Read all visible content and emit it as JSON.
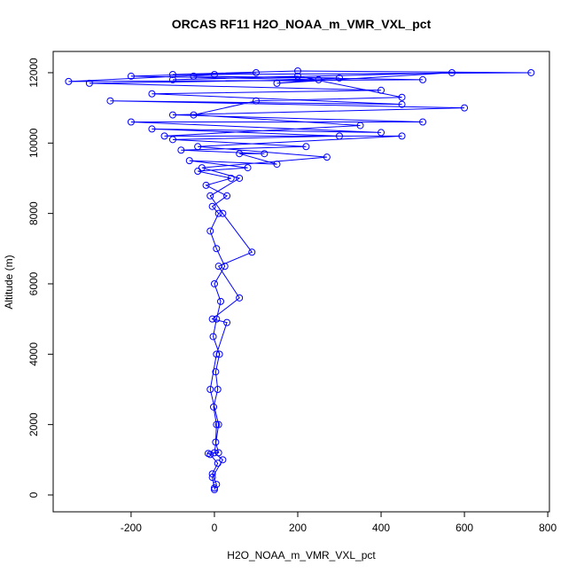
{
  "chart_data": {
    "type": "line",
    "title": "ORCAS RF11 H2O_NOAA_m_VMR_VXL_pct",
    "x_label": "H2O_NOAA_m_VMR_VXL_pct",
    "y_label": "Altitude (m)",
    "color": "#0000ff",
    "markers": true,
    "grid": false,
    "xlim": [
      -387,
      804
    ],
    "ylim": [
      -479,
      12604
    ],
    "xticks": [
      -200,
      0,
      200,
      400,
      600,
      800
    ],
    "yticks": [
      0,
      2000,
      4000,
      6000,
      8000,
      10000,
      12000
    ],
    "x": [
      0,
      5,
      -5,
      8,
      -10,
      -15,
      10,
      3,
      5,
      -2,
      8,
      3,
      12,
      -3,
      5,
      15,
      0,
      25,
      5,
      -10,
      10,
      -5,
      30,
      -20,
      40,
      -40,
      80,
      -60,
      150,
      60,
      120,
      -80,
      220,
      -100,
      300,
      -150,
      400,
      -200,
      500,
      -100,
      600,
      -250,
      450,
      -150,
      400,
      -300,
      250,
      -200,
      100,
      -100,
      200,
      760,
      0,
      -350,
      500,
      -50,
      300,
      150,
      570,
      -100,
      200,
      450,
      100,
      -50,
      350,
      -120,
      450,
      -40,
      270,
      -30,
      60,
      -10,
      20,
      90,
      10,
      60,
      -5,
      30,
      5,
      -10,
      10,
      0,
      20,
      -5,
      0
    ],
    "values": [
      150,
      300,
      600,
      900,
      1150,
      1180,
      1200,
      1500,
      2000,
      2500,
      3000,
      3500,
      4000,
      4500,
      5000,
      5500,
      6000,
      6500,
      7000,
      7500,
      8000,
      8200,
      8500,
      8800,
      9000,
      9200,
      9300,
      9500,
      9400,
      9700,
      9700,
      9800,
      9900,
      10100,
      10200,
      10400,
      10300,
      10600,
      10600,
      10800,
      11000,
      11200,
      11100,
      11400,
      11500,
      11700,
      11800,
      11900,
      12000,
      11950,
      12050,
      12000,
      11950,
      11750,
      11800,
      11900,
      11850,
      11700,
      12000,
      11800,
      11900,
      11300,
      11200,
      10800,
      10500,
      10200,
      10200,
      9900,
      9600,
      9300,
      9000,
      8500,
      8000,
      6900,
      6500,
      5600,
      5000,
      4900,
      4000,
      3000,
      2000,
      1200,
      1000,
      500,
      200
    ]
  }
}
